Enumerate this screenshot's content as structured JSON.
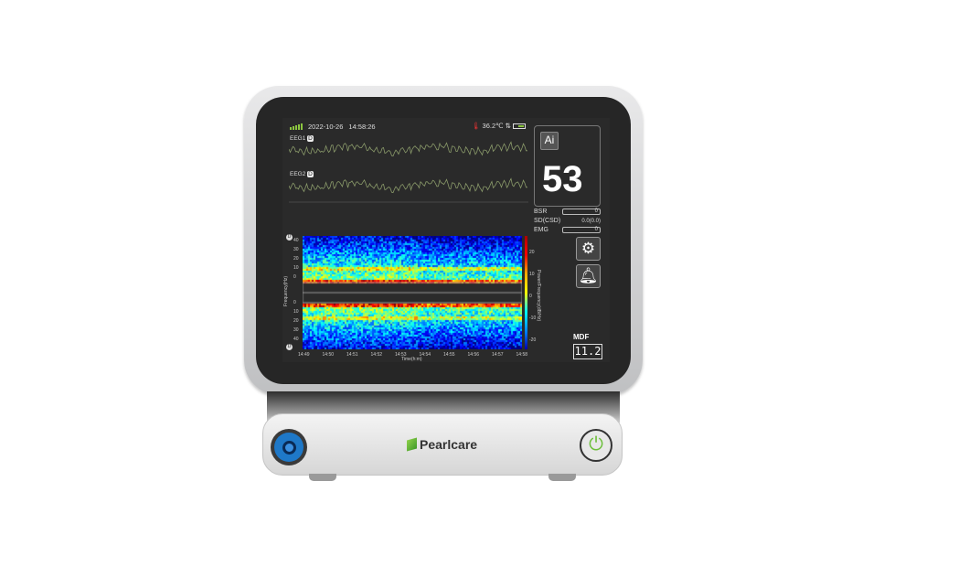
{
  "status": {
    "date": "2022-10-26",
    "time": "14:58:26",
    "temperature": "36.2℃",
    "signal_level": 5,
    "icons": [
      "signal-icon",
      "thermometer-icon",
      "transfer-icon",
      "battery-icon"
    ]
  },
  "eeg": [
    {
      "label": "EEG1",
      "badge": "D"
    },
    {
      "label": "EEG2",
      "badge": "D"
    }
  ],
  "index": {
    "badge": "Ai",
    "value": "53"
  },
  "params": [
    {
      "label": "BSR",
      "value": "0"
    },
    {
      "label": "SD(CSD)",
      "value": "0.0(0.0)"
    },
    {
      "label": "EMG",
      "value": "0"
    }
  ],
  "mdf": {
    "label": "MDF",
    "value": "11.2"
  },
  "chart_data": {
    "type": "heatmap",
    "xlabel": "Time(h:m)",
    "ylabel": "Frequency(Hz)",
    "colorbar_label": "Power/Frequency(dB/Hz)",
    "x_ticks": [
      "14:49",
      "14:50",
      "14:51",
      "14:52",
      "14:53",
      "14:54",
      "14:55",
      "14:56",
      "14:57",
      "14:58"
    ],
    "y_ticks_top": [
      "40",
      "30",
      "20",
      "10",
      "0"
    ],
    "y_ticks_bottom": [
      "0",
      "10",
      "20",
      "30",
      "40"
    ],
    "colorbar_ticks": [
      "20",
      "10",
      "0",
      "-10",
      "-20"
    ],
    "channel_badges": [
      "D",
      "D"
    ],
    "colormap": "jet"
  },
  "device": {
    "brand": "Pearlcare"
  }
}
